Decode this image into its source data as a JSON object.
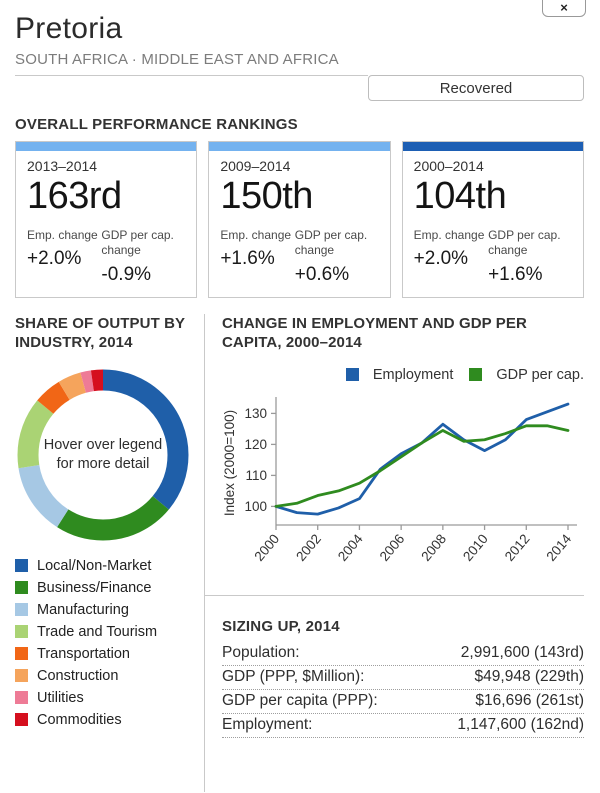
{
  "header": {
    "title": "Pretoria",
    "subtitle": "SOUTH AFRICA · MIDDLE EAST AND AFRICA",
    "status_label": "Recovered",
    "close_label": "×"
  },
  "rankings": {
    "heading": "OVERALL PERFORMANCE RANKINGS",
    "metric_labels": {
      "emp": "Emp. change",
      "gdp": "GDP per cap. change"
    },
    "cards": [
      {
        "period": "2013–2014",
        "rank": "163rd",
        "emp_change": "+2.0%",
        "gdp_change": "-0.9%",
        "accent": "#74b2ef"
      },
      {
        "period": "2009–2014",
        "rank": "150th",
        "emp_change": "+1.6%",
        "gdp_change": "+0.6%",
        "accent": "#74b2ef"
      },
      {
        "period": "2000–2014",
        "rank": "104th",
        "emp_change": "+2.0%",
        "gdp_change": "+1.6%",
        "accent": "#1d5fb4"
      }
    ]
  },
  "industry": {
    "heading": "SHARE OF OUTPUT BY INDUSTRY, 2014",
    "center_note": "Hover over legend for more detail"
  },
  "employment_chart": {
    "heading": "CHANGE IN EMPLOYMENT AND GDP PER CAPITA, 2000–2014"
  },
  "sizing_up": {
    "heading": "SIZING UP, 2014",
    "rows": [
      {
        "label": "Population:",
        "value": "2,991,600 (143rd)"
      },
      {
        "label": "GDP (PPP, $Million):",
        "value": "$49,948 (229th)"
      },
      {
        "label": "GDP per capita (PPP):",
        "value": "$16,696 (261st)"
      },
      {
        "label": "Employment:",
        "value": "1,147,600 (162nd)"
      }
    ]
  },
  "chart_data": [
    {
      "type": "pie",
      "donut": true,
      "title": "SHARE OF OUTPUT BY INDUSTRY, 2014",
      "center_note": "Hover over legend for more detail",
      "legend_position": "bottom-left",
      "segments": [
        {
          "label": "Local/Non-Market",
          "share_pct": 36.0,
          "color": "#1f5fa9"
        },
        {
          "label": "Business/Finance",
          "share_pct": 23.0,
          "color": "#2f8b1f"
        },
        {
          "label": "Manufacturing",
          "share_pct": 13.5,
          "color": "#a6c8e4"
        },
        {
          "label": "Trade and Tourism",
          "share_pct": 13.5,
          "color": "#aad374"
        },
        {
          "label": "Transportation",
          "share_pct": 5.3,
          "color": "#f16616"
        },
        {
          "label": "Construction",
          "share_pct": 4.4,
          "color": "#f5a45c"
        },
        {
          "label": "Utilities",
          "share_pct": 2.0,
          "color": "#ee7b96"
        },
        {
          "label": "Commodities",
          "share_pct": 2.3,
          "color": "#d50f1e"
        }
      ]
    },
    {
      "type": "line",
      "title": "CHANGE IN EMPLOYMENT AND GDP PER CAPITA, 2000–2014",
      "ylabel": "Index (2000=100)",
      "ylim": [
        94,
        134
      ],
      "yticks": [
        100,
        110,
        120,
        130
      ],
      "x": [
        2000,
        2001,
        2002,
        2003,
        2004,
        2005,
        2006,
        2007,
        2008,
        2009,
        2010,
        2011,
        2012,
        2013,
        2014
      ],
      "xticks": [
        2000,
        2002,
        2004,
        2006,
        2008,
        2010,
        2012,
        2014
      ],
      "grid": false,
      "legend_position": "top-right",
      "series": [
        {
          "name": "Employment",
          "color": "#1f5fa9",
          "values": [
            100,
            98,
            97.5,
            99.5,
            102.5,
            112,
            117,
            120.5,
            126.5,
            121.5,
            118,
            121.5,
            128,
            130.5,
            133
          ]
        },
        {
          "name": "GDP per cap.",
          "color": "#2f8b1f",
          "values": [
            100,
            101,
            103.5,
            105,
            107.5,
            111.5,
            116,
            120.5,
            124.5,
            121,
            121.5,
            123.5,
            126,
            126,
            124.5
          ]
        }
      ]
    }
  ]
}
